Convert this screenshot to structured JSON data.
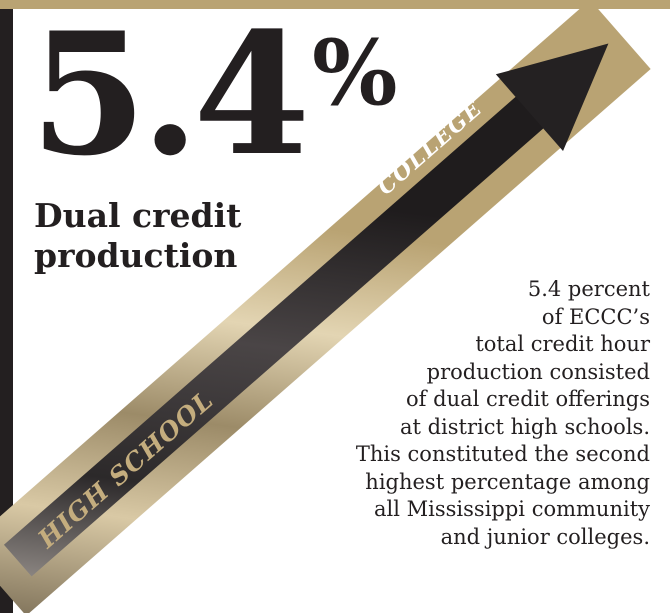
{
  "stat": {
    "value": "5.4",
    "unit": "%"
  },
  "headline": {
    "line1": "Dual credit",
    "line2": "production"
  },
  "arrow": {
    "start_label": "HIGH SCHOOL",
    "end_label": "COLLEGE"
  },
  "description_lines": [
    "5.4 percent",
    "of ECCC’s",
    "total credit hour",
    "production consisted",
    "of dual credit offerings",
    "at district high schools.",
    "This constituted the second",
    "highest percentage among",
    "all Mississippi community",
    "and junior colleges."
  ],
  "colors": {
    "gold": "#b9a373",
    "dark": "#231f20",
    "arrow_dark": "#2a2728",
    "text": "#231f20"
  }
}
